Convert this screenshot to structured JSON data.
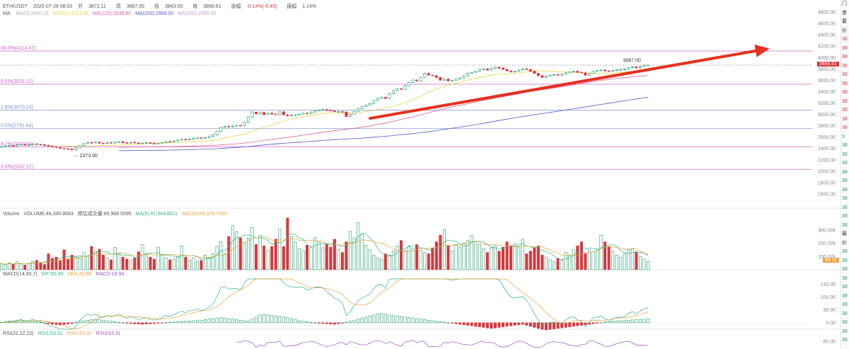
{
  "header": {
    "symbol": "ETH/USDT",
    "datetime": "2025-07-28 08:00",
    "open_label": "开",
    "open": "3872.11",
    "high_label": "高",
    "high": "3887.00",
    "low_label": "低",
    "low": "3843.00",
    "close_label": "收",
    "close": "3866.61",
    "change_label": "涨幅",
    "change": "-0.14%(-5.49)",
    "amplitude_label": "振幅",
    "amplitude": "1.14%"
  },
  "ma_legend": {
    "title": "MA",
    "items": [
      {
        "text": "MA(5):3840.16",
        "color": "#b5b5b5"
      },
      {
        "text": "MA(20):3713.06",
        "color": "#e8d34a"
      },
      {
        "text": "MA(120):3339.80",
        "color": "#e05a9a"
      },
      {
        "text": "MA(200):2999.00",
        "color": "#5a55c8"
      },
      {
        "text": "MA(200):2999.00",
        "color": "#c89ad8"
      }
    ]
  },
  "volume_legend": {
    "items": [
      {
        "text": "Volume",
        "color": "#555555"
      },
      {
        "text": "VOLUME:48,345.8083",
        "color": "#555555"
      },
      {
        "text": "预估成交量:80,968.5095",
        "color": "#555555"
      },
      {
        "text": "MA(5):81,944.8011",
        "color": "#2ab58a"
      },
      {
        "text": "MA(10):88,478.7035",
        "color": "#e8a23a"
      }
    ]
  },
  "macd_legend": {
    "items": [
      {
        "text": "MACD(14,30,7)",
        "color": "#555555"
      },
      {
        "text": "DIF:50.35",
        "color": "#2ab58a"
      },
      {
        "text": "DEA:43.88",
        "color": "#e8a23a"
      },
      {
        "text": "MACD:18.94",
        "color": "#a050c8"
      }
    ]
  },
  "rsi_legend": {
    "items": [
      {
        "text": "RSI(22,22,22)",
        "color": "#555555"
      },
      {
        "text": "RSI1:63.31",
        "color": "#2ab58a"
      },
      {
        "text": "RSI2:63.31",
        "color": "#e8a23a"
      },
      {
        "text": "RSI3:63.31",
        "color": "#a050c8"
      }
    ]
  },
  "side_panel": {
    "items": [
      {
        "text": "门",
        "color": "#333"
      },
      {
        "text": "查",
        "color": "#333"
      },
      {
        "text": "要",
        "color": "#333"
      },
      {
        "text": "价",
        "color": "#333"
      },
      {
        "text": "38",
        "color": "#d9363e"
      },
      {
        "text": "38",
        "color": "#d9363e"
      },
      {
        "text": "38",
        "color": "#d9363e"
      },
      {
        "text": "38",
        "color": "#d9363e"
      },
      {
        "text": "38",
        "color": "#d9363e"
      },
      {
        "text": "38",
        "color": "#d9363e"
      },
      {
        "text": "38",
        "color": "#d9363e"
      },
      {
        "text": "38",
        "color": "#d9363e"
      },
      {
        "text": "38",
        "color": "#d9363e"
      },
      {
        "text": "38",
        "color": "#d9363e"
      },
      {
        "text": "38",
        "color": "#d9363e"
      },
      {
        "text": "3",
        "color": "#1f9d6b"
      },
      {
        "text": "38",
        "color": "#1f9d6b"
      },
      {
        "text": "38",
        "color": "#1f9d6b"
      },
      {
        "text": "38",
        "color": "#1f9d6b"
      },
      {
        "text": "38",
        "color": "#1f9d6b"
      },
      {
        "text": "38",
        "color": "#1f9d6b"
      },
      {
        "text": "38",
        "color": "#1f9d6b"
      },
      {
        "text": "38",
        "color": "#1f9d6b"
      },
      {
        "text": "38",
        "color": "#1f9d6b"
      },
      {
        "text": "38",
        "color": "#1f9d6b"
      },
      {
        "text": "38",
        "color": "#1f9d6b"
      },
      {
        "text": "最",
        "color": "#333"
      },
      {
        "text": "价",
        "color": "#333"
      },
      {
        "text": "38",
        "color": "#1f9d6b"
      },
      {
        "text": "38",
        "color": "#1f9d6b"
      },
      {
        "text": "38",
        "color": "#1f9d6b"
      },
      {
        "text": "38",
        "color": "#1f9d6b"
      },
      {
        "text": "38",
        "color": "#1f9d6b"
      },
      {
        "text": "38",
        "color": "#1f9d6b"
      },
      {
        "text": "38",
        "color": "#1f9d6b"
      },
      {
        "text": "38",
        "color": "#1f9d6b"
      },
      {
        "text": "38",
        "color": "#1f9d6b"
      },
      {
        "text": "38",
        "color": "#1f9d6b"
      },
      {
        "text": "38",
        "color": "#1f9d6b"
      }
    ]
  },
  "colors": {
    "up": "#1f9d6b",
    "down": "#d9363e",
    "arrow": "#e5311f",
    "ma20": "#e8d34a",
    "ma120": "#e05a9a",
    "ma200": "#5a55c8",
    "fib_purple": "#c860c8",
    "fib_blue": "#7a8fd0"
  },
  "chart_data": {
    "type": "candlestick",
    "price_axis": {
      "ylim": [
        1500,
        4900
      ],
      "ticks": [
        "4800.00",
        "4600.00",
        "4400.00",
        "4200.00",
        "4000.00",
        "3800.00",
        "3600.00",
        "3400.00",
        "3200.00",
        "3000.00",
        "2800.00",
        "2600.00",
        "2400.00",
        "2200.00",
        "2000.00",
        "1800.00",
        "1600.00"
      ]
    },
    "fib_levels": [
      {
        "label": "00.0%(4114.37)",
        "value": 4114.37,
        "color": "#c860c8"
      },
      {
        "label": "8.6%(3531.12)",
        "value": 3531.12,
        "color": "#c860c8"
      },
      {
        "label": "1.8%(3073.24)",
        "value": 3073.24,
        "color": "#7a8fd0"
      },
      {
        "label": "0.0%(2751.64)",
        "value": 2751.64,
        "color": "#7a8fd0"
      },
      {
        "label": "8.2%(2430.04)",
        "value": 2430.04,
        "color": "#c860c8"
      },
      {
        "label": "3.6%(2032.12)",
        "value": 2032.12,
        "color": "#c860c8"
      }
    ],
    "last_price": {
      "label": "3866.61",
      "value": 3866.61
    },
    "high_annotation": {
      "label": "3887.00",
      "value": 3887.0
    },
    "low_annotation": {
      "label": "2373.00",
      "value": 2373.0
    },
    "trend_arrow": {
      "from_value": 2930,
      "to_value": 4125
    },
    "closes": [
      2432,
      2438,
      2450,
      2445,
      2462,
      2470,
      2458,
      2465,
      2480,
      2472,
      2468,
      2455,
      2440,
      2428,
      2418,
      2405,
      2395,
      2388,
      2375,
      2410,
      2455,
      2485,
      2505,
      2498,
      2510,
      2492,
      2488,
      2502,
      2495,
      2508,
      2520,
      2502,
      2490,
      2508,
      2498,
      2487,
      2493,
      2500,
      2490,
      2485,
      2492,
      2505,
      2522,
      2518,
      2532,
      2548,
      2560,
      2552,
      2570,
      2575,
      2588,
      2578,
      2592,
      2610,
      2640,
      2700,
      2770,
      2790,
      2780,
      2795,
      2805,
      2800,
      2860,
      2950,
      3040,
      3010,
      3035,
      2995,
      3020,
      3005,
      3000,
      3045,
      2990,
      2975,
      2985,
      2992,
      3005,
      3020,
      3010,
      3035,
      3060,
      3075,
      3085,
      3070,
      3062,
      3048,
      3050,
      3040,
      2962,
      3000,
      3055,
      3100,
      3135,
      3160,
      3190,
      3240,
      3280,
      3300,
      3280,
      3360,
      3420,
      3450,
      3440,
      3505,
      3560,
      3605,
      3590,
      3650,
      3720,
      3690,
      3680,
      3650,
      3600,
      3620,
      3590,
      3600,
      3620,
      3640,
      3680,
      3720,
      3740,
      3760,
      3790,
      3800,
      3780,
      3810,
      3830,
      3812,
      3790,
      3765,
      3750,
      3758,
      3780,
      3800,
      3790,
      3760,
      3720,
      3680,
      3650,
      3670,
      3690,
      3700,
      3690,
      3705,
      3730,
      3750,
      3760,
      3740,
      3730,
      3690,
      3720,
      3760,
      3768,
      3780,
      3765,
      3758,
      3770,
      3785,
      3790,
      3795,
      3820,
      3835,
      3820,
      3840,
      3860,
      3866.61
    ],
    "volume_axis": {
      "ylim": [
        0,
        400000
      ],
      "ticks": [
        "300.00k",
        "200.00k",
        "100.00k"
      ]
    },
    "last_volume_label": "48.3k",
    "volumes": [
      46,
      38,
      52,
      41,
      60,
      44,
      35,
      48,
      62,
      71,
      55,
      40,
      120,
      86,
      95,
      70,
      150,
      78,
      110,
      95,
      85,
      130,
      100,
      175,
      140,
      155,
      110,
      90,
      75,
      168,
      125,
      95,
      80,
      70,
      88,
      135,
      190,
      120,
      95,
      80,
      170,
      110,
      90,
      75,
      80,
      100,
      180,
      95,
      72,
      88,
      64,
      70,
      110,
      90,
      120,
      175,
      212,
      120,
      250,
      332,
      285,
      240,
      205,
      238,
      318,
      190,
      260,
      180,
      145,
      175,
      230,
      305,
      175,
      390,
      250,
      210,
      160,
      145,
      185,
      170,
      245,
      210,
      165,
      195,
      170,
      230,
      155,
      130,
      210,
      290,
      240,
      355,
      270,
      185,
      150,
      110,
      90,
      80,
      120,
      110,
      140,
      180,
      220,
      148,
      180,
      160,
      190,
      145,
      130,
      120,
      165,
      210,
      260,
      300,
      180,
      140,
      190,
      170,
      200,
      220,
      260,
      210,
      190,
      160,
      130,
      165,
      180,
      140,
      170,
      210,
      180,
      195,
      175,
      230,
      120,
      140,
      165,
      180,
      110,
      95,
      75,
      60,
      85,
      70,
      130,
      110,
      150,
      180,
      210,
      125,
      150,
      135,
      155,
      260,
      210,
      175,
      140,
      110,
      95,
      120,
      150,
      160,
      135,
      100,
      80,
      62,
      75,
      55,
      48
    ],
    "macd_axis": {
      "ylim": [
        -25,
        170
      ],
      "ticks": [
        "150.00",
        "100.00",
        "50.00",
        "0.00"
      ]
    },
    "macd_hist": [
      2,
      4,
      6,
      8,
      10,
      12,
      10,
      8,
      6,
      4,
      2,
      -2,
      -4,
      -6,
      -8,
      -9,
      -7,
      -5,
      -3,
      2,
      5,
      8,
      10,
      12,
      13,
      12,
      10,
      8,
      6,
      4,
      2,
      0,
      -2,
      -3,
      -4,
      -5,
      -6,
      -5,
      -4,
      -3,
      -2,
      -1,
      1,
      2,
      3,
      4,
      5,
      6,
      7,
      8,
      9,
      10,
      12,
      14,
      16,
      18,
      20,
      18,
      16,
      14,
      12,
      10,
      8,
      6,
      14,
      22,
      30,
      32,
      30,
      28,
      26,
      24,
      22,
      20,
      16,
      12,
      8,
      6,
      4,
      2,
      0,
      -2,
      -3,
      -4,
      -5,
      -6,
      -4,
      -2,
      2,
      6,
      10,
      14,
      18,
      22,
      26,
      30,
      34,
      36,
      34,
      30,
      28,
      26,
      24,
      22,
      20,
      18,
      16,
      14,
      12,
      10,
      8,
      6,
      4,
      2,
      0,
      -2,
      -4,
      -6,
      -8,
      -10,
      -12,
      -14,
      -16,
      -18,
      -20,
      -22,
      -20,
      -18,
      -16,
      -14,
      -12,
      -10,
      -8,
      -6,
      -10,
      -14,
      -18,
      -22,
      -26,
      -28,
      -26,
      -24,
      -22,
      -20,
      -18,
      -16,
      -14,
      -12,
      -10,
      -8,
      -6,
      -4,
      -2,
      1,
      3,
      5,
      6,
      7,
      8,
      9,
      10,
      11,
      12,
      13,
      14,
      15,
      16,
      17,
      18,
      18.94
    ],
    "rsi_axis": {
      "ylim": [
        40,
        100
      ],
      "ticks": [
        "80.00"
      ]
    }
  }
}
